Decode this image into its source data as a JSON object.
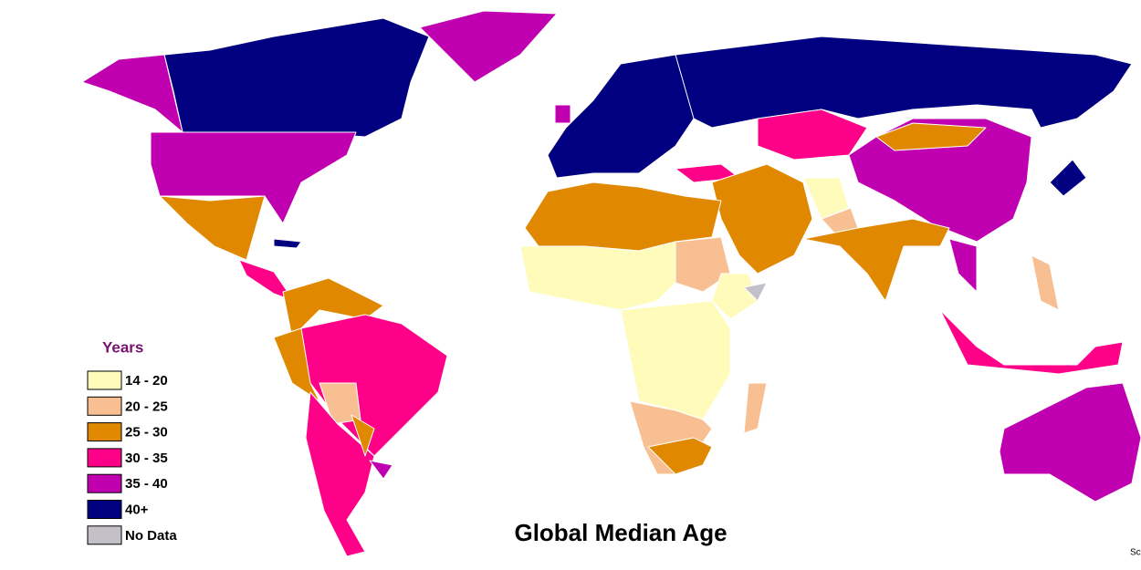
{
  "title": "Global Median Age",
  "legend": {
    "title": "Years",
    "items": [
      {
        "label": "14 - 20",
        "color": "#fffbbb"
      },
      {
        "label": "20 - 25",
        "color": "#f8c092"
      },
      {
        "label": "25 - 30",
        "color": "#e08800"
      },
      {
        "label": "30 - 35",
        "color": "#ff0088"
      },
      {
        "label": "35 - 40",
        "color": "#c000b0"
      },
      {
        "label": "40+",
        "color": "#000080"
      },
      {
        "label": "No Data",
        "color": "#c4c0c8"
      }
    ]
  },
  "source_fragment": "Sc"
}
